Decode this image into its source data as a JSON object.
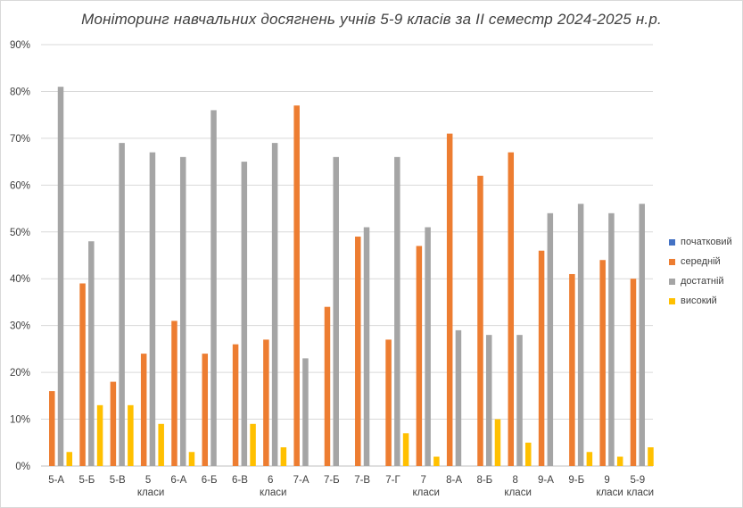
{
  "chart_data": {
    "type": "bar",
    "title": "Моніторинг навчальних досягнень учнів 5-9 класів за ІІ семестр 2024-2025 н.р.",
    "xlabel": "",
    "ylabel": "",
    "ylim": [
      0,
      90
    ],
    "yticks": [
      "0%",
      "10%",
      "20%",
      "30%",
      "40%",
      "50%",
      "60%",
      "70%",
      "80%",
      "90%"
    ],
    "grid": true,
    "legend_position": "right",
    "categories": [
      [
        "5-А"
      ],
      [
        "5-Б"
      ],
      [
        "5-В"
      ],
      [
        "5",
        "класи"
      ],
      [
        "6-А"
      ],
      [
        "6-Б"
      ],
      [
        "6-В"
      ],
      [
        "6",
        "класи"
      ],
      [
        "7-А"
      ],
      [
        "7-Б"
      ],
      [
        "7-В"
      ],
      [
        "7-Г"
      ],
      [
        "7",
        "класи"
      ],
      [
        "8-А"
      ],
      [
        "8-Б"
      ],
      [
        "8",
        "класи"
      ],
      [
        "9-А"
      ],
      [
        "9-Б"
      ],
      [
        "9",
        "класи"
      ],
      [
        "5-9",
        "класи"
      ]
    ],
    "series": [
      {
        "name": "початковий",
        "color": "#4472c4",
        "values": [
          0,
          0,
          0,
          0,
          0,
          0,
          0,
          0,
          0,
          0,
          0,
          0,
          0,
          0,
          0,
          0,
          0,
          0,
          0,
          0
        ]
      },
      {
        "name": "середній",
        "color": "#ed7d31",
        "values": [
          16,
          39,
          18,
          24,
          31,
          24,
          26,
          27,
          77,
          34,
          49,
          27,
          47,
          71,
          62,
          67,
          46,
          41,
          44,
          40
        ]
      },
      {
        "name": "достатній",
        "color": "#a5a5a5",
        "values": [
          81,
          48,
          69,
          67,
          66,
          76,
          65,
          69,
          23,
          66,
          51,
          66,
          51,
          29,
          28,
          28,
          54,
          56,
          54,
          56
        ]
      },
      {
        "name": "високий",
        "color": "#ffc000",
        "values": [
          3,
          13,
          13,
          9,
          3,
          0,
          9,
          4,
          0,
          0,
          0,
          7,
          2,
          0,
          10,
          5,
          0,
          3,
          2,
          4
        ]
      }
    ]
  }
}
